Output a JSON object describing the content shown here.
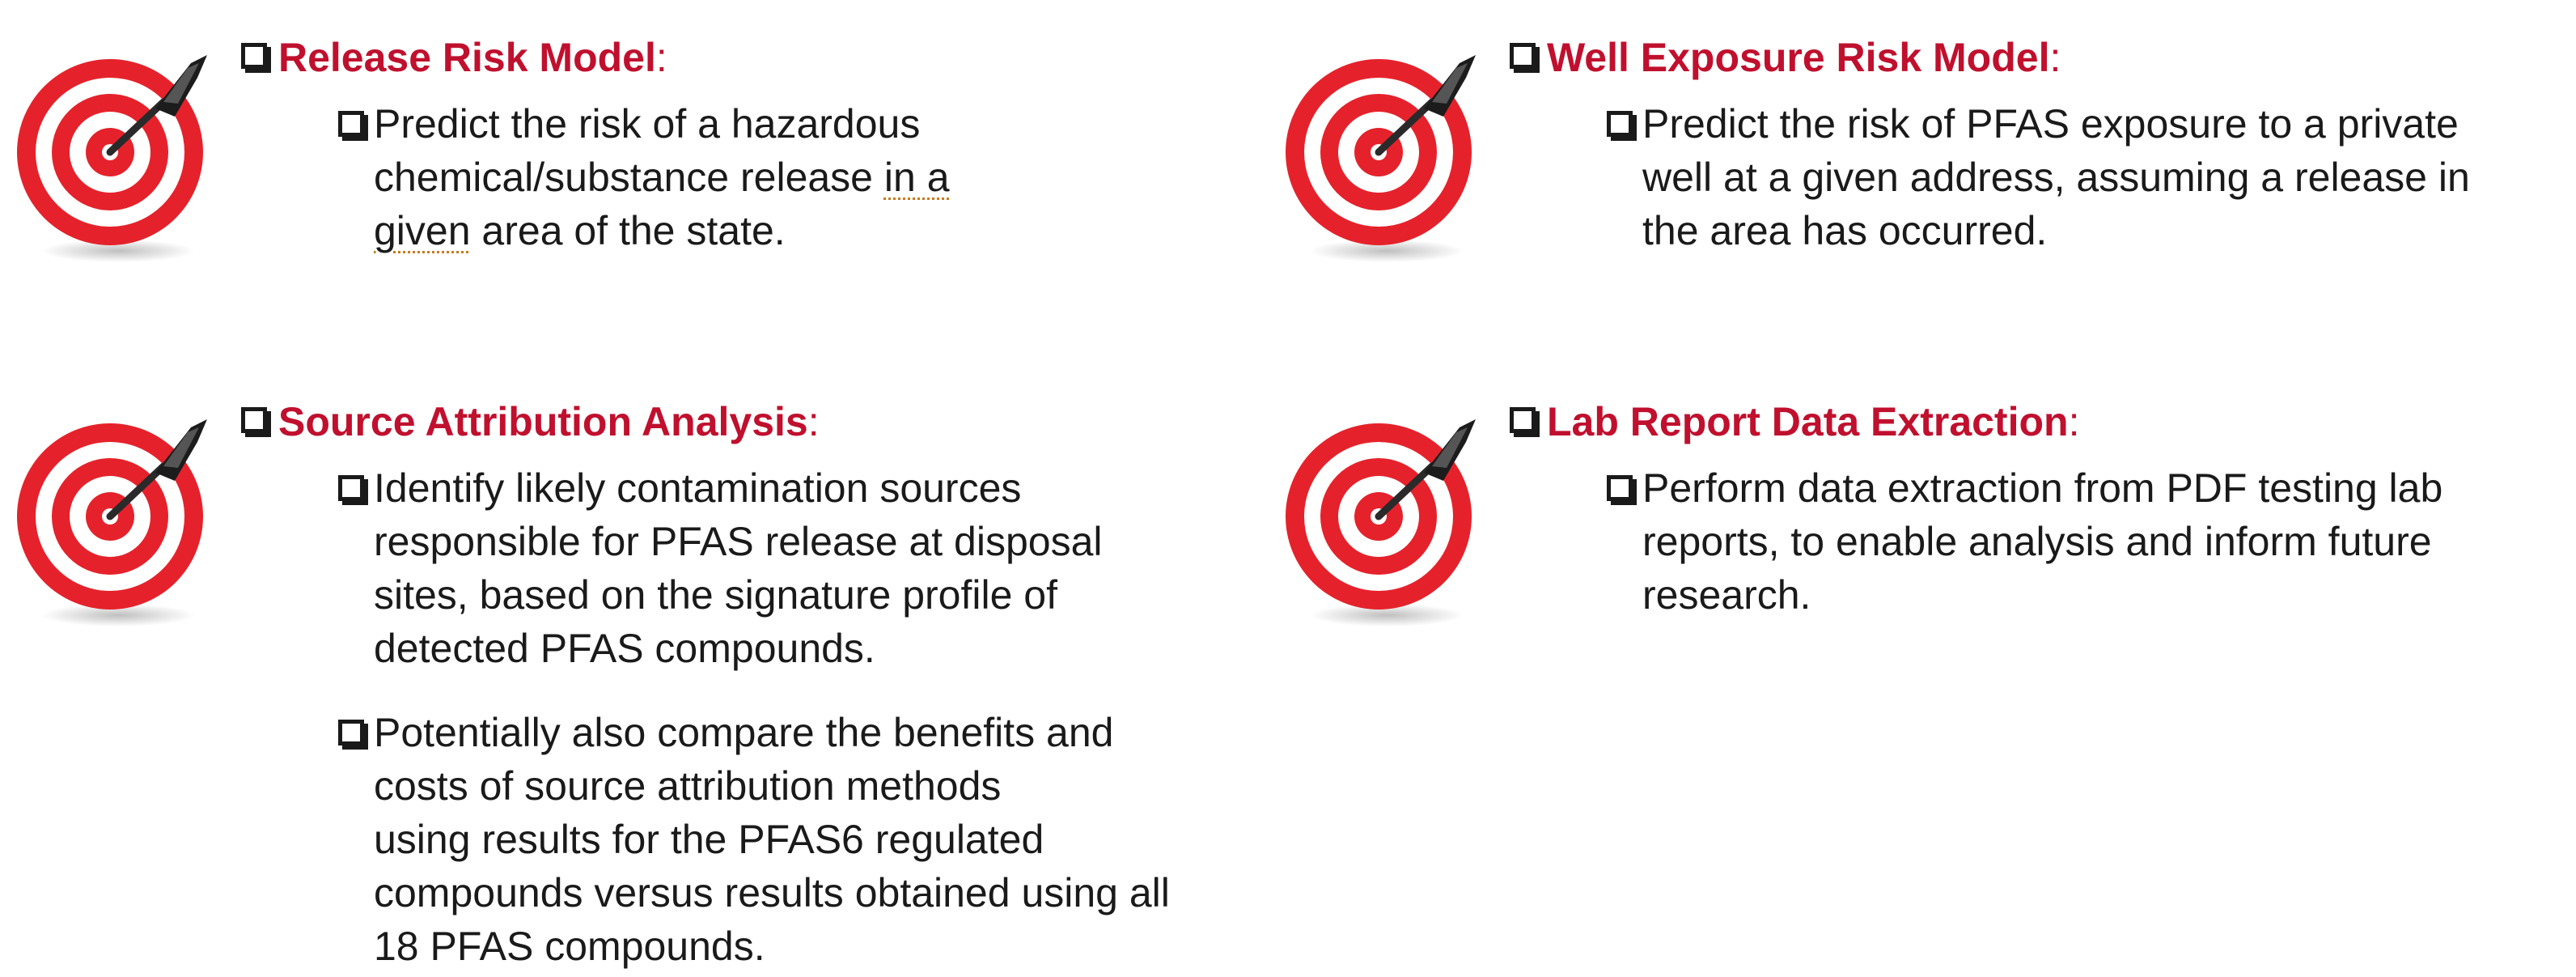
{
  "blocks": [
    {
      "heading": "Release Risk Model",
      "colon": ":",
      "bullets": [
        {
          "lines": [
            "Predict the risk of a hazardous",
            "chemical/substance release ",
            "in a",
            "given",
            " area of the state."
          ]
        }
      ]
    },
    {
      "heading": "Well Exposure Risk Model",
      "colon": ":",
      "bullets": [
        {
          "lines": [
            "Predict the risk of PFAS exposure to a private",
            "well at a given address, assuming a release in",
            "the area has occurred."
          ]
        }
      ]
    },
    {
      "heading": "Source Attribution Analysis",
      "colon": ":",
      "bullets": [
        {
          "lines": [
            "Identify likely contamination sources",
            "responsible for PFAS release at disposal",
            "sites, based on the signature profile of",
            "detected PFAS compounds."
          ]
        },
        {
          "lines": [
            "Potentially also compare the benefits and",
            "costs of source attribution methods",
            "using results for the PFAS6 regulated",
            "compounds versus results obtained using all",
            "18 PFAS compounds."
          ]
        }
      ]
    },
    {
      "heading": "Lab Report Data Extraction",
      "colon": ":",
      "bullets": [
        {
          "lines": [
            "Perform data extraction from PDF testing lab",
            "reports, to enable analysis and inform future",
            "research."
          ]
        }
      ]
    }
  ],
  "colors": {
    "heading": "#c0102e",
    "target_red": "#e5222b",
    "target_white": "#ffffff",
    "text": "#1a1a1a"
  },
  "icon": "target-with-dart-icon"
}
